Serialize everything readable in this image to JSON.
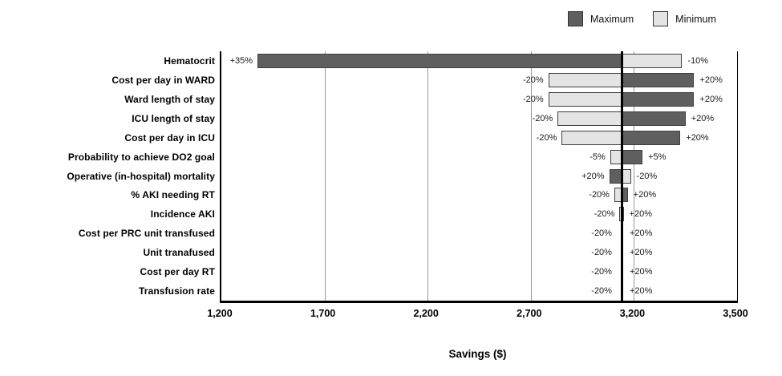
{
  "legend": {
    "items": [
      {
        "label": "Maximum",
        "color": "#5f5f5f"
      },
      {
        "label": "Minimum",
        "color": "#e4e4e4"
      }
    ]
  },
  "colors": {
    "maximum_bar": "#5f5f5f",
    "minimum_bar": "#e4e4e4",
    "bar_border": "#3f3f3f",
    "gridline": "#999999",
    "axis": "#000000"
  },
  "chart_data": {
    "type": "bar",
    "subtype": "tornado-sensitivity",
    "orientation": "horizontal",
    "title": "",
    "xlabel": "Savings ($)",
    "ylabel": "",
    "grid": "vertical",
    "legend_position": "top-right",
    "x_ticks": [
      "1,200",
      "1,700",
      "2,200",
      "2,700",
      "3,200",
      "3,500"
    ],
    "x_tick_values": [
      1200,
      1700,
      2200,
      2700,
      3200,
      3500
    ],
    "baseline_value": 3140,
    "rows": [
      {
        "category": "Hematocrit",
        "left": {
          "series": "Maximum",
          "label": "+35%",
          "value": 1375
        },
        "right": {
          "series": "Minimum",
          "label": "-10%",
          "value": 3340
        }
      },
      {
        "category": "Cost per day in WARD",
        "left": {
          "series": "Minimum",
          "label": "-20%",
          "value": 2785
        },
        "right": {
          "series": "Maximum",
          "label": "+20%",
          "value": 3375
        }
      },
      {
        "category": "Ward length of stay",
        "left": {
          "series": "Minimum",
          "label": "-20%",
          "value": 2785
        },
        "right": {
          "series": "Maximum",
          "label": "+20%",
          "value": 3375
        }
      },
      {
        "category": "ICU length of stay",
        "left": {
          "series": "Minimum",
          "label": "-20%",
          "value": 2830
        },
        "right": {
          "series": "Maximum",
          "label": "+20%",
          "value": 3350
        }
      },
      {
        "category": "Cost per day in ICU",
        "left": {
          "series": "Minimum",
          "label": "-20%",
          "value": 2850
        },
        "right": {
          "series": "Maximum",
          "label": "+20%",
          "value": 3335
        }
      },
      {
        "category": "Probability to achieve DO2 goal",
        "left": {
          "series": "Minimum",
          "label": "-5%",
          "value": 3085
        },
        "right": {
          "series": "Maximum",
          "label": "+5%",
          "value": 3225
        }
      },
      {
        "category": "Operative (in-hospital) mortality",
        "left": {
          "series": "Maximum",
          "label": "+20%",
          "value": 3080
        },
        "right": {
          "series": "Minimum",
          "label": "-20%",
          "value": 3185
        }
      },
      {
        "category": "% AKI needing RT",
        "left": {
          "series": "Minimum",
          "label": "-20%",
          "value": 3105
        },
        "right": {
          "series": "Maximum",
          "label": "+20%",
          "value": 3170
        }
      },
      {
        "category": "Incidence AKI",
        "left": {
          "series": "Minimum",
          "label": "-20%",
          "value": 3130
        },
        "right": {
          "series": "Maximum",
          "label": "+20%",
          "value": 3150
        }
      },
      {
        "category": "Cost per PRC unit transfused",
        "left": {
          "series": "Minimum",
          "label": "-20%",
          "value": 3139
        },
        "right": {
          "series": "Maximum",
          "label": "+20%",
          "value": 3141
        }
      },
      {
        "category": "Unit tranafused",
        "left": {
          "series": "Minimum",
          "label": "-20%",
          "value": 3139
        },
        "right": {
          "series": "Maximum",
          "label": "+20%",
          "value": 3141
        }
      },
      {
        "category": "Cost per day RT",
        "left": {
          "series": "Minimum",
          "label": "-20%",
          "value": 3139
        },
        "right": {
          "series": "Maximum",
          "label": "+20%",
          "value": 3141
        }
      },
      {
        "category": "Transfusion rate",
        "left": {
          "series": "Minimum",
          "label": "-20%",
          "value": 3139
        },
        "right": {
          "series": "Maximum",
          "label": "+20%",
          "value": 3141
        }
      }
    ]
  }
}
